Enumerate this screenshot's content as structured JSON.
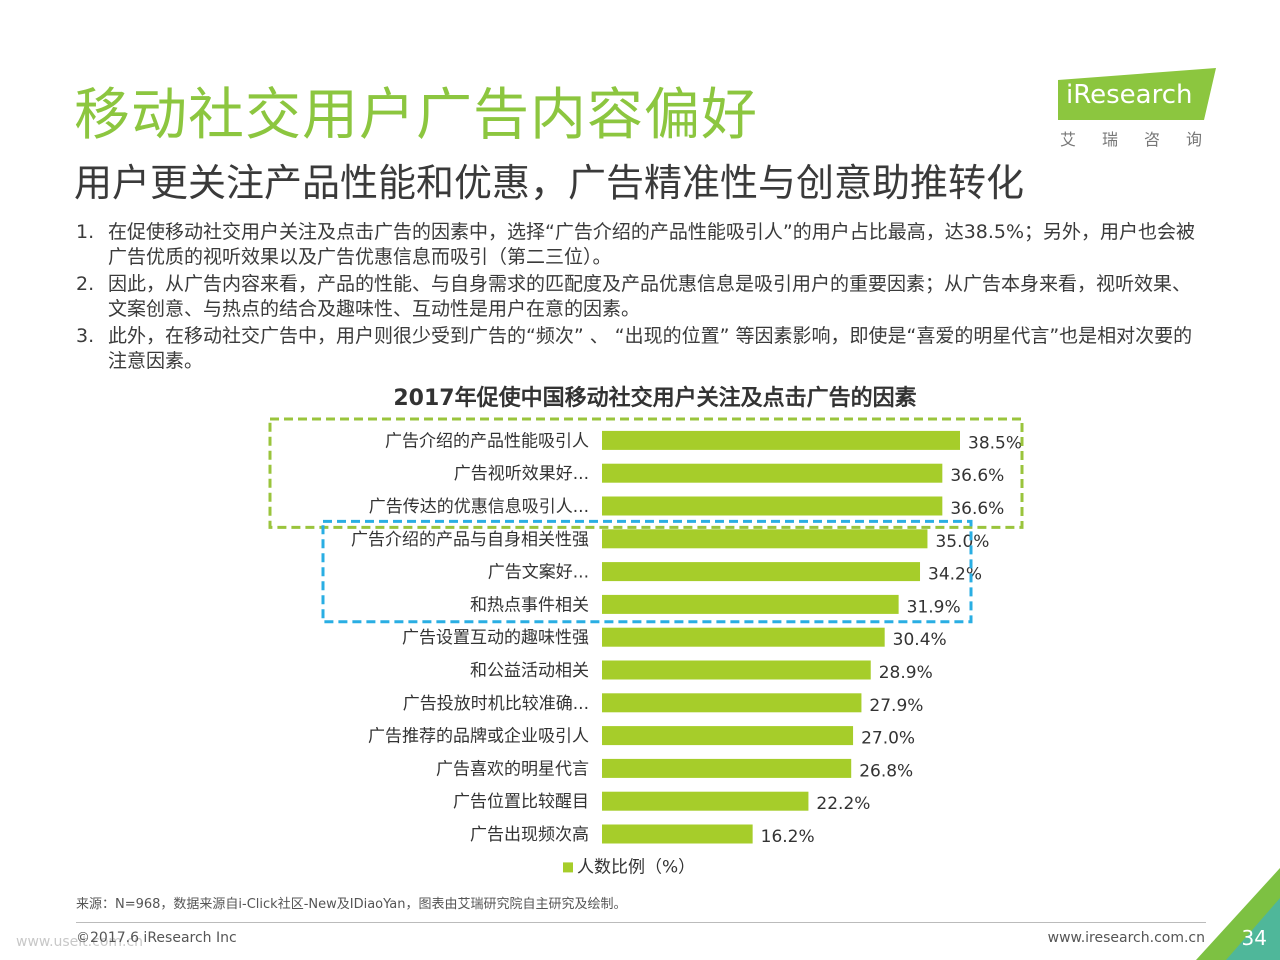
{
  "header": {
    "title": "移动社交用户广告内容偏好",
    "subtitle": "用户更关注产品性能和优惠，广告精准性与创意助推转化"
  },
  "logo": {
    "name": "iResearch",
    "sub": "艾瑞咨询"
  },
  "points": [
    {
      "num": "1.",
      "text": "在促使移动社交用户关注及点击广告的因素中，选择“广告介绍的产品性能吸引人”的用户占比最高，达38.5%；另外，用户也会被广告优质的视听效果以及广告优惠信息而吸引（第二三位）。"
    },
    {
      "num": "2.",
      "text": "因此，从广告内容来看，产品的性能、与自身需求的匹配度及产品优惠信息是吸引用户的重要因素；从广告本身来看，视听效果、文案创意、与热点的结合及趣味性、互动性是用户在意的因素。"
    },
    {
      "num": "3.",
      "text": "此外，在移动社交广告中，用户则很少受到广告的“频次” 、 “出现的位置” 等因素影响，即使是“喜爱的明星代言”也是相对次要的注意因素。"
    }
  ],
  "colors": {
    "bar": "#a6cd2a",
    "title": "#8cc63f",
    "highlight_green": "#9ac43c",
    "highlight_blue": "#29aee3",
    "corner": "#7dc142"
  },
  "chart_data": {
    "type": "bar",
    "orientation": "horizontal",
    "title": "2017年促使中国移动社交用户关注及点击广告的因素",
    "categories": [
      "广告介绍的产品性能吸引人",
      "广告视听效果好...",
      "广告传达的优惠信息吸引人...",
      "广告介绍的产品与自身相关性强",
      "广告文案好...",
      "和热点事件相关",
      "广告设置互动的趣味性强",
      "和公益活动相关",
      "广告投放时机比较准确...",
      "广告推荐的品牌或企业吸引人",
      "广告喜欢的明星代言",
      "广告位置比较醒目",
      "广告出现频次高"
    ],
    "series": [
      {
        "name": "人数比例（%）",
        "values": [
          38.5,
          36.6,
          36.6,
          35.0,
          34.2,
          31.9,
          30.4,
          28.9,
          27.9,
          27.0,
          26.8,
          22.2,
          16.2
        ],
        "labels": [
          "38.5%",
          "36.6%",
          "36.6%",
          "35.0%",
          "34.2%",
          "31.9%",
          "30.4%",
          "28.9%",
          "27.9%",
          "27.0%",
          "26.8%",
          "22.2%",
          "16.2%"
        ]
      }
    ],
    "xlim": [
      0,
      40
    ],
    "grid": false,
    "legend": "bottom-center",
    "highlight_groups": [
      {
        "color": "green",
        "from": 0,
        "to": 2
      },
      {
        "color": "blue",
        "from": 3,
        "to": 5
      }
    ]
  },
  "footer": {
    "source": "来源：N=968，数据来源自i-Click社区-New及IDiaoYan，图表由艾瑞研究院自主研究及绘制。",
    "copyright": "©2017.6 iResearch Inc",
    "website": "www.iresearch.com.cn",
    "page": "34",
    "watermark": "www.useit.com.cn"
  }
}
